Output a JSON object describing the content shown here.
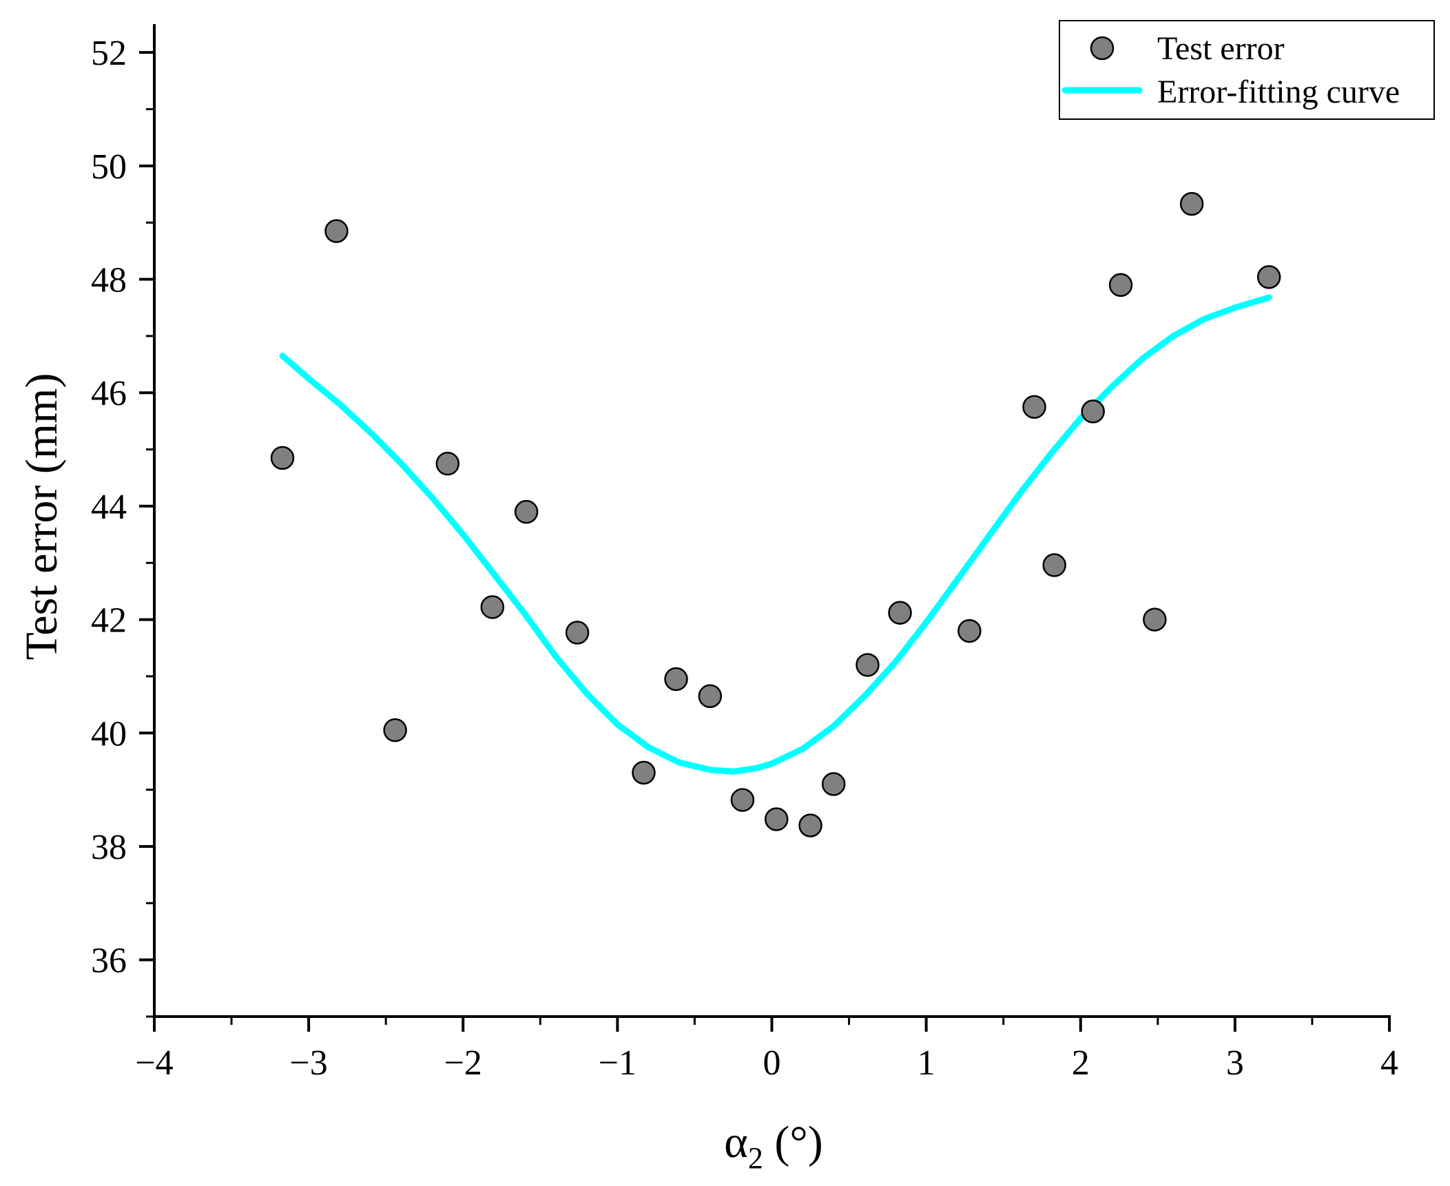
{
  "chart_data": {
    "type": "scatter",
    "title": "",
    "xlabel": {
      "main": "α",
      "sub": "2",
      "unit": " (°)"
    },
    "ylabel": "Test error (mm)",
    "xlim": [
      -4,
      4
    ],
    "ylim": [
      35,
      52.5
    ],
    "xticks": [
      -4,
      -3,
      -2,
      -1,
      0,
      1,
      2,
      3,
      4
    ],
    "xtick_labels": [
      "−4",
      "−3",
      "−2",
      "−1",
      "0",
      "1",
      "2",
      "3",
      "4"
    ],
    "yticks": [
      36,
      38,
      40,
      42,
      44,
      46,
      48,
      50,
      52
    ],
    "ytick_labels": [
      "36",
      "38",
      "40",
      "42",
      "44",
      "46",
      "48",
      "50",
      "52"
    ],
    "legend": {
      "position": "top-right",
      "entries": [
        "Test error",
        "Error-fitting curve"
      ]
    },
    "colors": {
      "marker_fill": "#808080",
      "marker_edge": "#000000",
      "curve": "#00ffff"
    },
    "series": [
      {
        "name": "Test error",
        "kind": "scatter",
        "x": [
          -3.17,
          -2.82,
          -2.44,
          -2.1,
          -1.81,
          -1.59,
          -1.26,
          -0.83,
          -0.62,
          -0.4,
          -0.19,
          0.03,
          0.25,
          0.4,
          0.62,
          0.83,
          1.28,
          1.7,
          1.83,
          2.08,
          2.26,
          2.48,
          2.72,
          3.22
        ],
        "y": [
          44.85,
          48.85,
          40.05,
          44.75,
          42.22,
          43.9,
          41.77,
          39.3,
          40.95,
          40.65,
          38.82,
          38.48,
          38.37,
          39.1,
          41.2,
          42.12,
          41.8,
          45.75,
          42.96,
          45.67,
          47.9,
          42.0,
          49.33,
          48.04
        ]
      },
      {
        "name": "Error-fitting curve",
        "kind": "line",
        "x": [
          -3.17,
          -3.0,
          -2.8,
          -2.6,
          -2.4,
          -2.2,
          -2.0,
          -1.8,
          -1.6,
          -1.4,
          -1.2,
          -1.0,
          -0.8,
          -0.6,
          -0.4,
          -0.25,
          -0.1,
          0.0,
          0.2,
          0.4,
          0.6,
          0.8,
          1.0,
          1.2,
          1.4,
          1.6,
          1.8,
          2.0,
          2.2,
          2.4,
          2.6,
          2.8,
          3.0,
          3.22
        ],
        "y": [
          46.65,
          46.25,
          45.8,
          45.3,
          44.75,
          44.15,
          43.5,
          42.8,
          42.1,
          41.35,
          40.7,
          40.15,
          39.75,
          39.48,
          39.35,
          39.32,
          39.38,
          39.46,
          39.72,
          40.12,
          40.65,
          41.25,
          41.95,
          42.7,
          43.45,
          44.2,
          44.9,
          45.55,
          46.1,
          46.6,
          47.0,
          47.3,
          47.5,
          47.68
        ]
      }
    ]
  }
}
